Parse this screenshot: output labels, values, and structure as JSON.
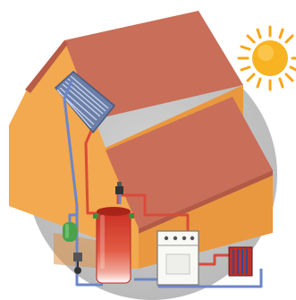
{
  "diagram": {
    "subject": "solar-water-heating-system",
    "components": [
      {
        "id": "sun",
        "icon": "sun-icon"
      },
      {
        "id": "house",
        "icon": "house-icon"
      },
      {
        "id": "solar-collector-panel",
        "icon": "solar-panel-icon"
      },
      {
        "id": "storage-tank",
        "icon": "water-tank-icon"
      },
      {
        "id": "boiler",
        "icon": "boiler-icon"
      },
      {
        "id": "radiator",
        "icon": "radiator-icon"
      },
      {
        "id": "expansion-vessel",
        "icon": "expansion-vessel-icon"
      },
      {
        "id": "pump-assembly",
        "icon": "pump-icon"
      }
    ],
    "colors": {
      "background_circle": "#c6c6c6",
      "roof": "#c96e58",
      "wall": "#f2a94f",
      "sun": "#f7b321",
      "hot_pipe": "#d94a3a",
      "cold_pipe": "#6c86c8",
      "tank_hot": "#d63a2c",
      "boiler_body": "#f8f8f4"
    }
  }
}
